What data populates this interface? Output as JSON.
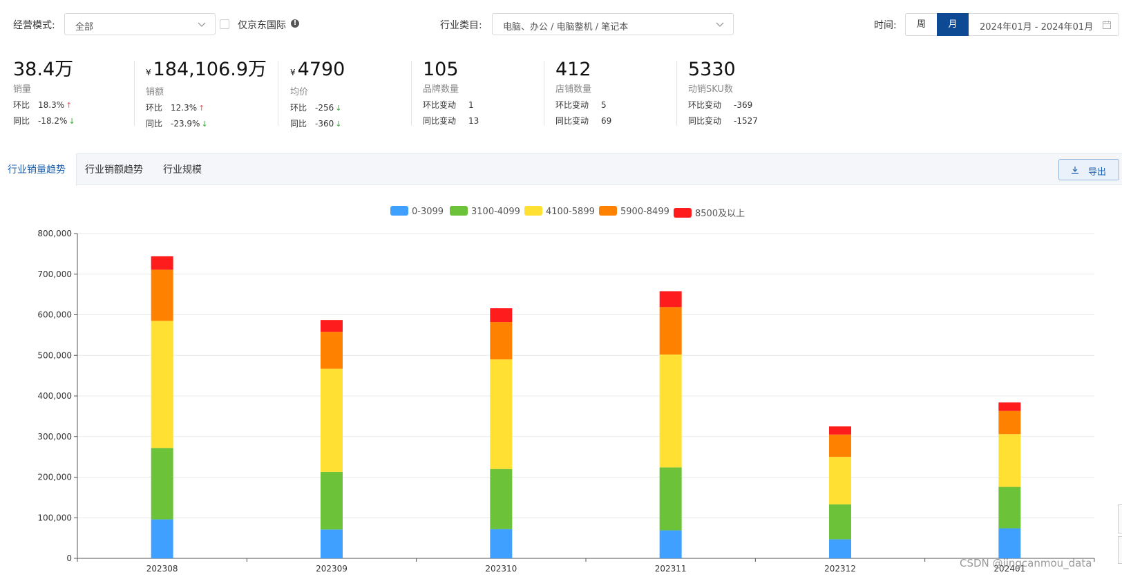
{
  "filters": {
    "mode_label": "经营模式:",
    "mode_value": "全部",
    "jd_intl_label": "仅京东国际",
    "category_label": "行业类目:",
    "category_value": "电脑、办公 / 电脑整机 / 笔记本",
    "time_label": "时间:",
    "time_week": "周",
    "time_month": "月",
    "time_range": "2024年01月 - 2024年01月"
  },
  "kpis": [
    {
      "value": "38.4万",
      "currency": "",
      "name": "销量",
      "rows": [
        {
          "k": "环比",
          "v": "18.3%",
          "dir": "up"
        },
        {
          "k": "同比",
          "v": "-18.2%",
          "dir": "down"
        }
      ]
    },
    {
      "value": "184,106.9万",
      "currency": "¥",
      "name": "销额",
      "rows": [
        {
          "k": "环比",
          "v": "12.3%",
          "dir": "up"
        },
        {
          "k": "同比",
          "v": "-23.9%",
          "dir": "down"
        }
      ]
    },
    {
      "value": "4790",
      "currency": "¥",
      "name": "均价",
      "rows": [
        {
          "k": "环比",
          "v": "-256",
          "dir": "down"
        },
        {
          "k": "同比",
          "v": "-360",
          "dir": "down"
        }
      ]
    },
    {
      "value": "105",
      "currency": "",
      "name": "品牌数量",
      "rows": [
        {
          "k": "环比变动",
          "v": "1",
          "dir": ""
        },
        {
          "k": "同比变动",
          "v": "13",
          "dir": ""
        }
      ]
    },
    {
      "value": "412",
      "currency": "",
      "name": "店铺数量",
      "rows": [
        {
          "k": "环比变动",
          "v": "5",
          "dir": ""
        },
        {
          "k": "同比变动",
          "v": "69",
          "dir": ""
        }
      ]
    },
    {
      "value": "5330",
      "currency": "",
      "name": "动销SKU数",
      "rows": [
        {
          "k": "环比变动",
          "v": "-369",
          "dir": ""
        },
        {
          "k": "同比变动",
          "v": "-1527",
          "dir": ""
        }
      ]
    }
  ],
  "tabs": [
    "行业销量趋势",
    "行业销额趋势",
    "行业规模"
  ],
  "export_label": "导出",
  "watermark": "CSDN @jingcanmou_data",
  "chart_data": {
    "type": "bar",
    "stacked": true,
    "categories": [
      "202308",
      "202309",
      "202310",
      "202311",
      "202312",
      "202401"
    ],
    "series": [
      {
        "name": "0-3099",
        "color": "#3fa0ff",
        "values": [
          96000,
          71000,
          72000,
          69000,
          47000,
          74000
        ]
      },
      {
        "name": "3100-4099",
        "color": "#6cc33a",
        "values": [
          176000,
          142000,
          148000,
          155000,
          86000,
          102000
        ]
      },
      {
        "name": "4100-5899",
        "color": "#ffe033",
        "values": [
          313000,
          254000,
          270000,
          278000,
          117000,
          130000
        ]
      },
      {
        "name": "5900-8499",
        "color": "#ff8100",
        "values": [
          126000,
          91000,
          92000,
          117000,
          55000,
          57000
        ]
      },
      {
        "name": "8500及以上",
        "color": "#ff1c1c",
        "values": [
          33000,
          29000,
          34000,
          39000,
          20000,
          21000
        ]
      }
    ],
    "ylim": [
      0,
      800000
    ],
    "yticks": [
      0,
      100000,
      200000,
      300000,
      400000,
      500000,
      600000,
      700000,
      800000
    ],
    "ytick_labels": [
      "0",
      "100,000",
      "200,000",
      "300,000",
      "400,000",
      "500,000",
      "600,000",
      "700,000",
      "800,000"
    ],
    "legend_position": "top-center",
    "grid": true
  }
}
